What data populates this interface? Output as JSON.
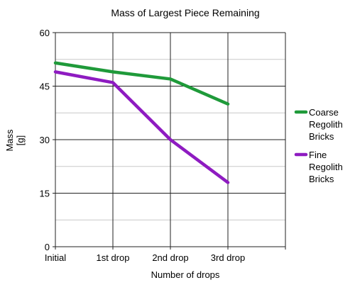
{
  "chart_data": {
    "type": "line",
    "title": "Mass of Largest Piece Remaining",
    "xlabel": "Number of drops",
    "ylabel": [
      "Mass",
      "[g]"
    ],
    "categories": [
      "Initial",
      "1st drop",
      "2nd drop",
      "3rd drop"
    ],
    "ylim": [
      0,
      60
    ],
    "yticks": [
      0,
      15,
      30,
      45,
      60
    ],
    "grid": true,
    "legend_position": "right",
    "series": [
      {
        "name": "Coarse Regolith Bricks",
        "name_lines": [
          "Coarse",
          "Regolith",
          "Bricks"
        ],
        "color": "#1f9a3a",
        "values": [
          51.5,
          49,
          47,
          40
        ]
      },
      {
        "name": "Fine Regolith Bricks",
        "name_lines": [
          "Fine",
          "Regolith",
          "Bricks"
        ],
        "color": "#8e1bc1",
        "values": [
          49,
          46,
          30,
          18
        ]
      }
    ]
  }
}
